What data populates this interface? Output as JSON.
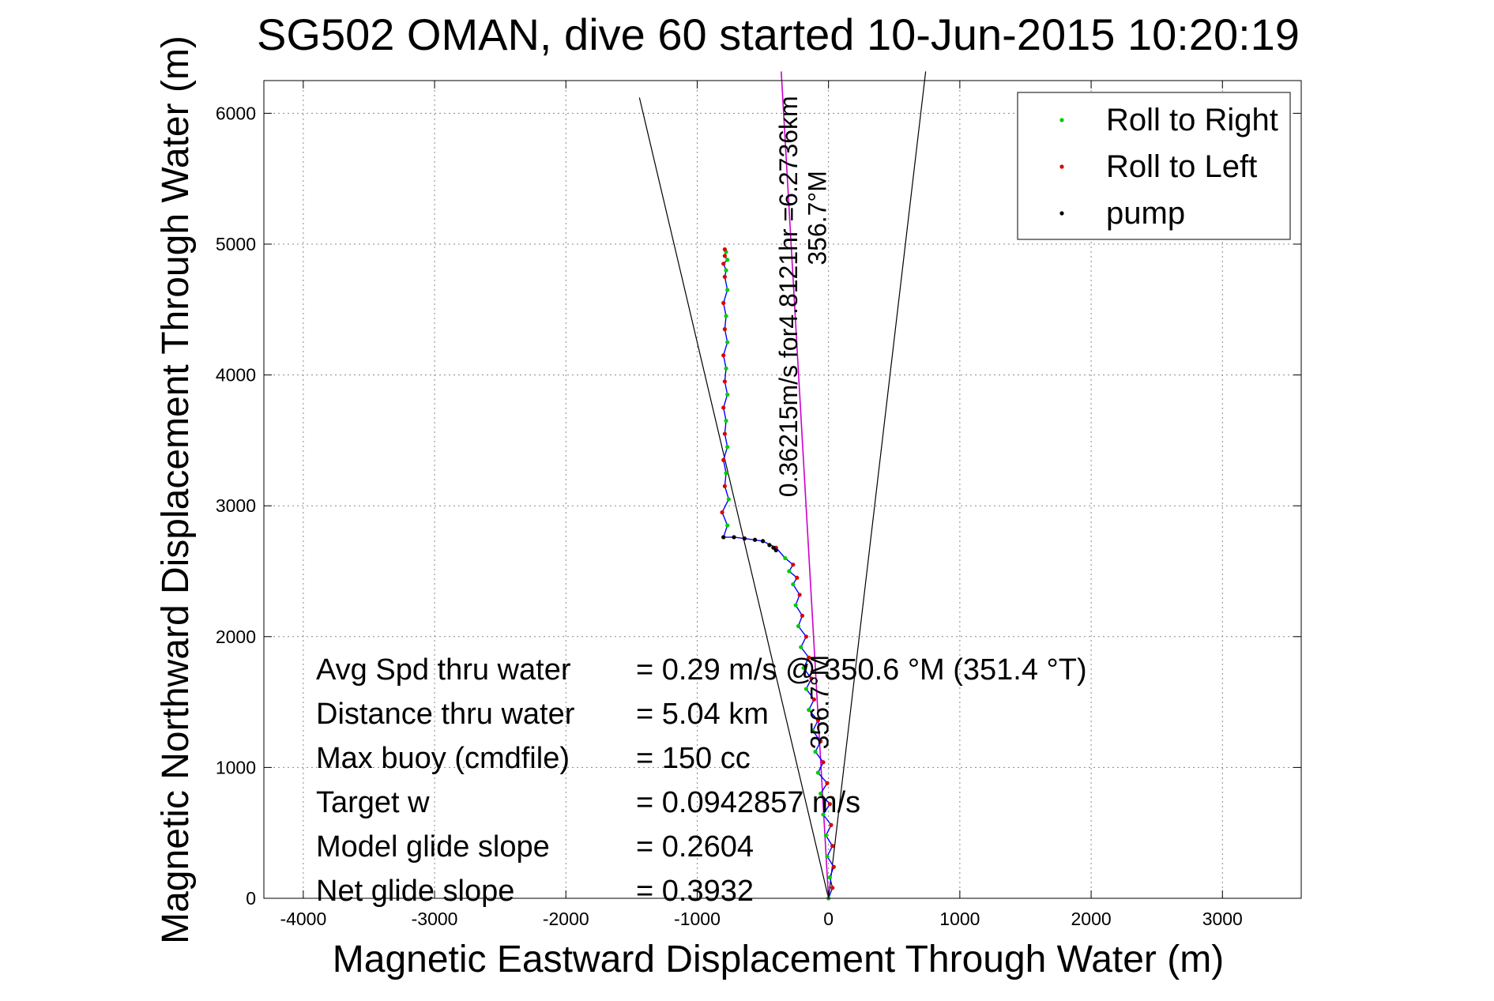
{
  "chart_data": {
    "type": "line",
    "title": "SG502 OMAN, dive 60 started 10-Jun-2015 10:20:19",
    "xlabel": "Magnetic Eastward Displacement Through Water (m)",
    "ylabel": "Magnetic Northward Displacement Through Water (m)",
    "xlim": [
      -4300,
      3600
    ],
    "ylim": [
      0,
      6250
    ],
    "xticks": [
      -4000,
      -3000,
      -2000,
      -1000,
      0,
      1000,
      2000,
      3000
    ],
    "yticks": [
      0,
      1000,
      2000,
      3000,
      4000,
      5000,
      6000
    ],
    "grid": true,
    "legend_position": "top-right",
    "legend": [
      {
        "label": "Roll to Right",
        "color": "#00cc00"
      },
      {
        "label": "Roll to Left",
        "color": "#dd0000"
      },
      {
        "label": "pump",
        "color": "#000000"
      }
    ],
    "track_color": "#0000ff",
    "cone_color": "#000000",
    "heading_line_color": "#cc00cc",
    "track": {
      "x": [
        0,
        30,
        10,
        40,
        -10,
        30,
        -20,
        20,
        -40,
        10,
        -60,
        -10,
        -80,
        -40,
        -100,
        -60,
        -120,
        -80,
        -150,
        -110,
        -170,
        -130,
        -190,
        -150,
        -210,
        -170,
        -230,
        -200,
        -250,
        -220,
        -270,
        -240,
        -300,
        -270,
        -330,
        -400,
        -500,
        -640,
        -720,
        -800,
        -770,
        -810,
        -760,
        -790,
        -780,
        -800,
        -770,
        -790,
        -780,
        -800,
        -770,
        -790,
        -780,
        -800,
        -770,
        -790,
        -780,
        -800,
        -770,
        -790,
        -780,
        -800,
        -770,
        -790,
        -780,
        -790
      ],
      "y": [
        0,
        80,
        160,
        240,
        320,
        400,
        480,
        560,
        640,
        720,
        800,
        880,
        960,
        1040,
        1120,
        1200,
        1280,
        1360,
        1440,
        1520,
        1600,
        1680,
        1760,
        1840,
        1920,
        2000,
        2080,
        2160,
        2240,
        2320,
        2400,
        2450,
        2500,
        2550,
        2600,
        2680,
        2730,
        2750,
        2760,
        2760,
        2850,
        2950,
        3050,
        3150,
        3250,
        3350,
        3450,
        3550,
        3650,
        3750,
        3850,
        3950,
        4050,
        4150,
        4250,
        4350,
        4450,
        4550,
        4650,
        4750,
        4800,
        4850,
        4880,
        4910,
        4940,
        4960
      ]
    },
    "pump_points": {
      "x": [
        -800,
        -720,
        -640,
        -560,
        -500,
        -450,
        -420,
        -400
      ],
      "y": [
        2760,
        2760,
        2750,
        2740,
        2730,
        2700,
        2680,
        2660
      ]
    },
    "cone_left": {
      "x": [
        0,
        -1440
      ],
      "y": [
        0,
        6120
      ]
    },
    "cone_right": {
      "x": [
        0,
        740
      ],
      "y": [
        0,
        6320
      ]
    },
    "heading_line": {
      "x": [
        0,
        -360
      ],
      "y": [
        0,
        6320
      ]
    },
    "annotations": [
      {
        "text": "356.7°M",
        "x": -20,
        "y": 5200,
        "rotation": -90
      },
      {
        "text": "0.36215m/s for4.8121hr =6.2736km",
        "x": -240,
        "y": 4600,
        "rotation": -90
      },
      {
        "text": "356.7°M",
        "x": 0,
        "y": 1500,
        "rotation": -90
      }
    ],
    "stats": [
      {
        "label": "Avg Spd thru water",
        "value": "=  0.29 m/s @ 350.6 °M (351.4 °T)"
      },
      {
        "label": "Distance thru water",
        "value": "=  5.04 km"
      },
      {
        "label": "Max buoy (cmdfile)",
        "value": "= 150 cc"
      },
      {
        "label": "Target w",
        "value": "= 0.0942857 m/s"
      },
      {
        "label": "Model glide slope",
        "value": "= 0.2604"
      },
      {
        "label": "Net glide slope",
        "value": "= 0.3932"
      }
    ]
  }
}
